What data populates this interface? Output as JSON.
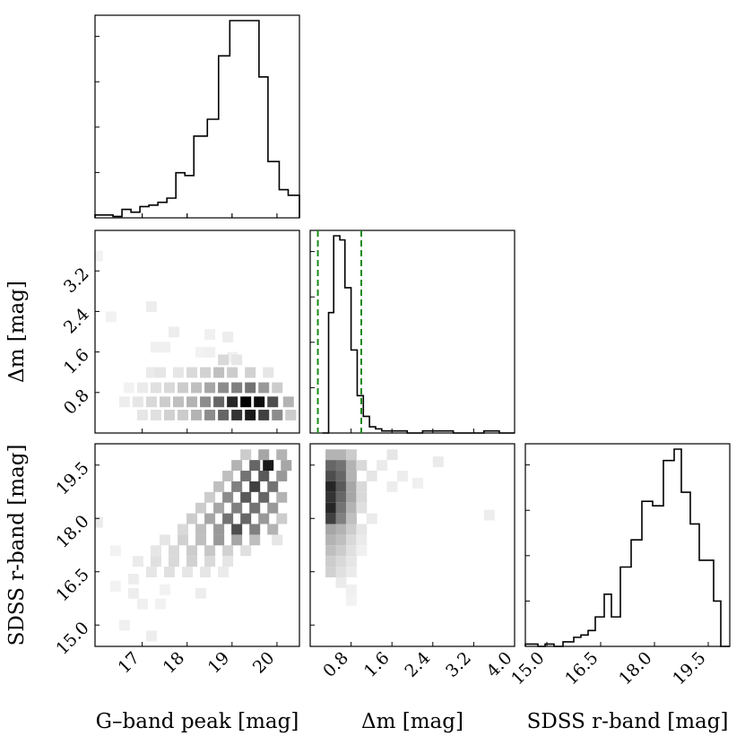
{
  "chart_data": {
    "type": "corner",
    "variables": [
      {
        "label": "G–band peak [mag]",
        "range": [
          15.95,
          20.5
        ],
        "ticks": [
          17,
          18,
          19,
          20
        ],
        "tick_labels": [
          "17",
          "18",
          "19",
          "20"
        ]
      },
      {
        "label": "Δm [mag]",
        "range": [
          0.0,
          4.0
        ],
        "ticks": [
          0.8,
          1.6,
          2.4,
          3.2,
          4.0
        ],
        "tick_labels": [
          "0.8",
          "1.6",
          "2.4",
          "3.2",
          "4.0"
        ],
        "y_tick_labels": [
          "0.8",
          "1.6",
          "2.4",
          "3.2"
        ]
      },
      {
        "label": "SDSS r-band [mag]",
        "range": [
          14.4,
          20.1
        ],
        "ticks": [
          15.0,
          16.5,
          18.0,
          19.5
        ],
        "tick_labels": [
          "15.0",
          "16.5",
          "18.0",
          "19.5"
        ]
      }
    ],
    "hist_g": {
      "edges": [
        15.95,
        16.35,
        16.55,
        16.75,
        16.95,
        17.15,
        17.35,
        17.55,
        17.75,
        17.95,
        18.15,
        18.45,
        18.7,
        18.95,
        19.15,
        19.6,
        19.8,
        20.05,
        20.25,
        20.5
      ],
      "counts": [
        2,
        1,
        6,
        4,
        8,
        9,
        11,
        14,
        32,
        30,
        58,
        70,
        115,
        140,
        140,
        100,
        40,
        20,
        16
      ]
    },
    "hist_dm": {
      "edges": [
        0.24,
        0.36,
        0.46,
        0.58,
        0.68,
        0.8,
        0.92,
        1.04,
        1.16,
        1.28,
        1.4,
        1.6,
        1.9,
        2.2,
        2.5,
        2.8,
        3.1,
        3.4,
        3.7,
        4.0
      ],
      "counts": [
        0,
        58,
        95,
        93,
        70,
        40,
        18,
        8,
        3,
        2,
        1,
        1,
        0,
        1,
        1,
        0,
        0,
        1,
        0
      ]
    },
    "hist_r": {
      "edges": [
        14.4,
        14.75,
        14.95,
        15.2,
        15.45,
        15.75,
        15.95,
        16.15,
        16.35,
        16.6,
        16.8,
        17.05,
        17.35,
        17.65,
        17.95,
        18.25,
        18.55,
        18.75,
        19.0,
        19.25,
        19.65,
        19.85,
        20.1
      ],
      "counts": [
        1,
        0,
        1,
        0,
        2,
        4,
        5,
        7,
        13,
        23,
        13,
        35,
        47,
        64,
        62,
        82,
        87,
        68,
        54,
        38,
        20,
        0
      ]
    },
    "dashed_lines": {
      "variable": "Δm [mag]",
      "values": [
        0.15,
        1.0
      ],
      "color": "#1a8a1a"
    },
    "density_g_dm": [
      [
        16.0,
        3.5,
        0.05
      ],
      [
        17.2,
        2.5,
        0.07
      ],
      [
        16.3,
        2.3,
        0.05
      ],
      [
        17.7,
        2.0,
        0.07
      ],
      [
        17.3,
        1.7,
        0.06
      ],
      [
        17.5,
        1.7,
        0.06
      ],
      [
        18.3,
        1.6,
        0.05
      ],
      [
        18.5,
        1.6,
        0.06
      ],
      [
        18.5,
        1.95,
        0.06
      ],
      [
        18.9,
        1.9,
        0.07
      ],
      [
        19.0,
        1.5,
        0.06
      ],
      [
        17.2,
        1.2,
        0.08
      ],
      [
        17.4,
        1.2,
        0.1
      ],
      [
        17.8,
        1.2,
        0.1
      ],
      [
        18.1,
        1.2,
        0.15
      ],
      [
        18.4,
        1.2,
        0.18
      ],
      [
        18.7,
        1.2,
        0.25
      ],
      [
        19.0,
        1.2,
        0.2
      ],
      [
        19.4,
        1.2,
        0.18
      ],
      [
        19.8,
        1.2,
        0.1
      ],
      [
        18.8,
        1.45,
        0.15
      ],
      [
        19.1,
        1.45,
        0.1
      ],
      [
        16.7,
        0.9,
        0.05
      ],
      [
        17.0,
        0.9,
        0.08
      ],
      [
        17.3,
        0.9,
        0.12
      ],
      [
        17.6,
        0.9,
        0.15
      ],
      [
        17.9,
        0.9,
        0.2
      ],
      [
        18.2,
        0.9,
        0.25
      ],
      [
        18.5,
        0.9,
        0.35
      ],
      [
        18.8,
        0.9,
        0.45
      ],
      [
        19.1,
        0.9,
        0.5
      ],
      [
        19.4,
        0.9,
        0.55
      ],
      [
        19.7,
        0.9,
        0.4
      ],
      [
        20.0,
        0.9,
        0.2
      ],
      [
        16.6,
        0.62,
        0.07
      ],
      [
        16.9,
        0.62,
        0.1
      ],
      [
        17.2,
        0.62,
        0.15
      ],
      [
        17.5,
        0.62,
        0.2
      ],
      [
        17.8,
        0.62,
        0.25
      ],
      [
        18.1,
        0.62,
        0.3
      ],
      [
        18.4,
        0.62,
        0.45
      ],
      [
        18.7,
        0.62,
        0.6
      ],
      [
        19.0,
        0.62,
        0.85
      ],
      [
        19.3,
        0.62,
        1.0
      ],
      [
        19.6,
        0.62,
        0.95
      ],
      [
        19.9,
        0.62,
        0.7
      ],
      [
        20.25,
        0.62,
        0.3
      ],
      [
        17.0,
        0.36,
        0.1
      ],
      [
        17.3,
        0.36,
        0.12
      ],
      [
        17.6,
        0.36,
        0.18
      ],
      [
        17.9,
        0.36,
        0.2
      ],
      [
        18.2,
        0.36,
        0.3
      ],
      [
        18.5,
        0.36,
        0.45
      ],
      [
        18.8,
        0.36,
        0.6
      ],
      [
        19.1,
        0.36,
        0.8
      ],
      [
        19.4,
        0.36,
        0.9
      ],
      [
        19.7,
        0.36,
        0.75
      ],
      [
        20.0,
        0.36,
        0.45
      ],
      [
        20.3,
        0.36,
        0.2
      ]
    ],
    "density_g_r": [
      [
        17.2,
        14.7,
        0.07
      ],
      [
        16.6,
        15.0,
        0.06
      ],
      [
        17.0,
        15.6,
        0.06
      ],
      [
        17.4,
        15.6,
        0.05
      ],
      [
        16.8,
        15.9,
        0.07
      ],
      [
        16.4,
        16.1,
        0.05
      ],
      [
        17.5,
        16.0,
        0.05
      ],
      [
        18.3,
        15.9,
        0.07
      ],
      [
        16.8,
        16.3,
        0.07
      ],
      [
        17.2,
        16.5,
        0.1
      ],
      [
        17.6,
        16.5,
        0.12
      ],
      [
        18.0,
        16.5,
        0.1
      ],
      [
        18.4,
        16.5,
        0.1
      ],
      [
        18.8,
        16.5,
        0.08
      ],
      [
        16.9,
        16.8,
        0.08
      ],
      [
        17.3,
        16.8,
        0.12
      ],
      [
        17.7,
        16.8,
        0.15
      ],
      [
        18.1,
        16.8,
        0.18
      ],
      [
        18.5,
        16.8,
        0.15
      ],
      [
        18.9,
        16.8,
        0.1
      ],
      [
        16.4,
        17.1,
        0.05
      ],
      [
        17.3,
        17.1,
        0.1
      ],
      [
        17.7,
        17.1,
        0.15
      ],
      [
        18.1,
        17.1,
        0.2
      ],
      [
        18.5,
        17.1,
        0.22
      ],
      [
        18.9,
        17.1,
        0.18
      ],
      [
        19.3,
        17.1,
        0.12
      ],
      [
        17.5,
        17.4,
        0.1
      ],
      [
        17.9,
        17.4,
        0.18
      ],
      [
        18.3,
        17.4,
        0.25
      ],
      [
        18.7,
        17.4,
        0.4
      ],
      [
        19.1,
        17.4,
        0.35
      ],
      [
        19.5,
        17.4,
        0.25
      ],
      [
        20.0,
        17.4,
        0.1
      ],
      [
        16.0,
        17.9,
        0.08
      ],
      [
        17.9,
        17.7,
        0.15
      ],
      [
        18.3,
        17.7,
        0.25
      ],
      [
        18.7,
        17.7,
        0.4
      ],
      [
        19.1,
        17.7,
        0.7
      ],
      [
        19.5,
        17.7,
        0.5
      ],
      [
        19.9,
        17.7,
        0.3
      ],
      [
        18.1,
        18.0,
        0.2
      ],
      [
        18.5,
        18.0,
        0.35
      ],
      [
        18.9,
        18.0,
        0.55
      ],
      [
        19.3,
        18.0,
        0.6
      ],
      [
        19.7,
        18.0,
        0.4
      ],
      [
        20.1,
        18.0,
        0.2
      ],
      [
        18.3,
        18.3,
        0.2
      ],
      [
        18.7,
        18.3,
        0.35
      ],
      [
        19.1,
        18.3,
        0.5
      ],
      [
        19.5,
        18.3,
        0.55
      ],
      [
        19.9,
        18.3,
        0.4
      ],
      [
        18.5,
        18.6,
        0.2
      ],
      [
        18.9,
        18.6,
        0.45
      ],
      [
        19.3,
        18.6,
        0.65
      ],
      [
        19.7,
        18.6,
        0.6
      ],
      [
        20.1,
        18.6,
        0.3
      ],
      [
        18.7,
        18.9,
        0.25
      ],
      [
        19.1,
        18.9,
        0.5
      ],
      [
        19.5,
        18.9,
        0.75
      ],
      [
        19.9,
        18.9,
        0.55
      ],
      [
        18.9,
        19.2,
        0.25
      ],
      [
        19.3,
        19.2,
        0.55
      ],
      [
        19.7,
        19.2,
        0.65
      ],
      [
        20.1,
        19.2,
        0.4
      ],
      [
        19.1,
        19.5,
        0.3
      ],
      [
        19.5,
        19.5,
        0.6
      ],
      [
        19.8,
        19.5,
        0.9
      ],
      [
        20.2,
        19.5,
        0.35
      ],
      [
        19.3,
        19.8,
        0.2
      ],
      [
        19.7,
        19.8,
        0.35
      ],
      [
        20.1,
        19.8,
        0.3
      ]
    ],
    "density_dm_r": [
      [
        0.4,
        19.8,
        0.3
      ],
      [
        0.6,
        19.8,
        0.3
      ],
      [
        0.8,
        19.8,
        0.2
      ],
      [
        1.6,
        19.8,
        0.1
      ],
      [
        0.4,
        19.5,
        0.6
      ],
      [
        0.6,
        19.5,
        0.55
      ],
      [
        0.8,
        19.5,
        0.3
      ],
      [
        1.0,
        19.5,
        0.15
      ],
      [
        1.4,
        19.5,
        0.08
      ],
      [
        2.5,
        19.6,
        0.08
      ],
      [
        0.4,
        19.2,
        0.7
      ],
      [
        0.6,
        19.2,
        0.6
      ],
      [
        0.8,
        19.2,
        0.3
      ],
      [
        1.2,
        19.2,
        0.1
      ],
      [
        1.8,
        19.2,
        0.07
      ],
      [
        2.1,
        19.0,
        0.06
      ],
      [
        0.4,
        18.9,
        0.85
      ],
      [
        0.6,
        18.9,
        0.65
      ],
      [
        0.8,
        18.9,
        0.35
      ],
      [
        1.0,
        18.9,
        0.15
      ],
      [
        1.6,
        18.9,
        0.07
      ],
      [
        0.4,
        18.6,
        0.8
      ],
      [
        0.6,
        18.6,
        0.6
      ],
      [
        0.8,
        18.6,
        0.35
      ],
      [
        1.0,
        18.6,
        0.15
      ],
      [
        0.4,
        18.3,
        0.85
      ],
      [
        0.6,
        18.3,
        0.55
      ],
      [
        0.8,
        18.3,
        0.3
      ],
      [
        1.0,
        18.3,
        0.12
      ],
      [
        0.4,
        18.0,
        0.75
      ],
      [
        0.6,
        18.0,
        0.5
      ],
      [
        0.8,
        18.0,
        0.25
      ],
      [
        1.2,
        18.0,
        0.08
      ],
      [
        3.5,
        18.1,
        0.07
      ],
      [
        0.4,
        17.7,
        0.35
      ],
      [
        0.6,
        17.7,
        0.3
      ],
      [
        0.8,
        17.7,
        0.2
      ],
      [
        1.0,
        17.7,
        0.1
      ],
      [
        0.4,
        17.4,
        0.3
      ],
      [
        0.6,
        17.4,
        0.25
      ],
      [
        0.8,
        17.4,
        0.15
      ],
      [
        1.0,
        17.4,
        0.08
      ],
      [
        0.4,
        17.1,
        0.25
      ],
      [
        0.6,
        17.1,
        0.2
      ],
      [
        0.8,
        17.1,
        0.12
      ],
      [
        1.0,
        17.1,
        0.06
      ],
      [
        0.4,
        16.8,
        0.2
      ],
      [
        0.6,
        16.8,
        0.15
      ],
      [
        0.8,
        16.8,
        0.1
      ],
      [
        0.4,
        16.5,
        0.18
      ],
      [
        0.6,
        16.5,
        0.12
      ],
      [
        0.8,
        16.5,
        0.08
      ],
      [
        0.6,
        16.2,
        0.08
      ],
      [
        0.8,
        16.0,
        0.06
      ],
      [
        0.8,
        15.7,
        0.05
      ]
    ]
  }
}
